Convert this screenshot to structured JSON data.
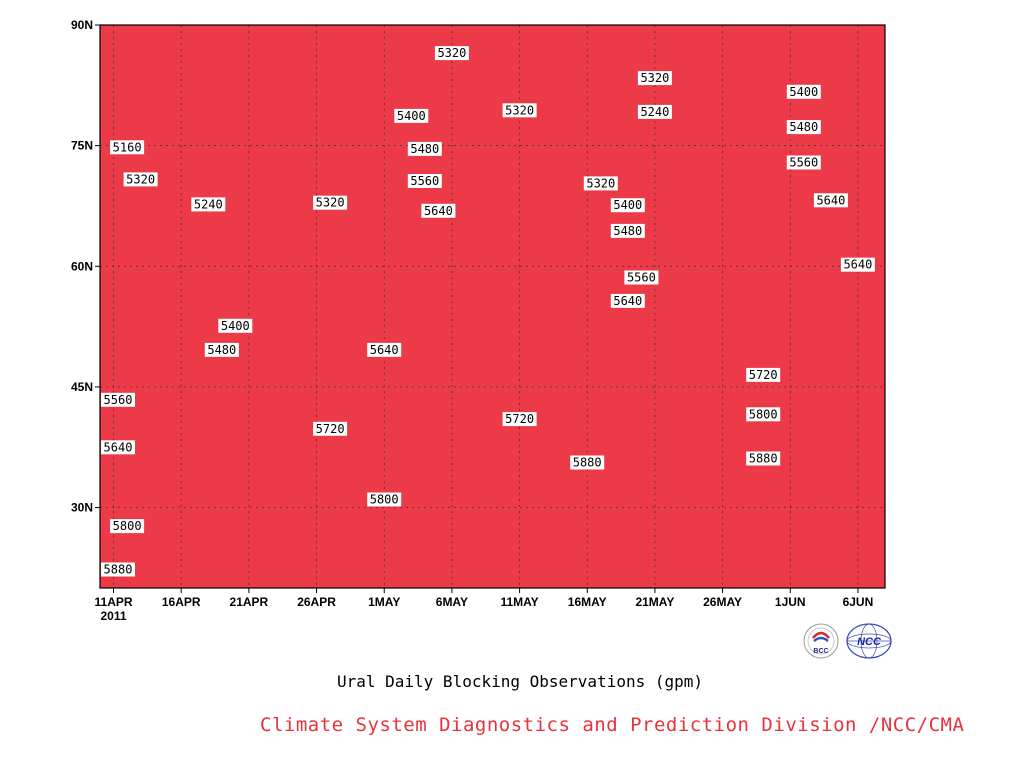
{
  "chart_data": {
    "type": "heatmap",
    "title": "",
    "xlabel": "",
    "ylabel": "",
    "x_ticks": [
      "11APR",
      "16APR",
      "21APR",
      "26APR",
      "1MAY",
      "6MAY",
      "11MAY",
      "16MAY",
      "21MAY",
      "26MAY",
      "1JUN",
      "6JUN"
    ],
    "x_tick_year": "2011",
    "xlim": [
      "2011-04-10",
      "2011-06-07"
    ],
    "y_ticks": [
      "30N",
      "45N",
      "60N",
      "75N",
      "90N"
    ],
    "ylim": [
      20,
      90
    ],
    "contour_levels": [
      5160,
      5240,
      5320,
      5400,
      5480,
      5560,
      5640,
      5720,
      5800,
      5880
    ],
    "level_colors": [
      "#0d1166",
      "#1714e0",
      "#3f4ff2",
      "#5b8fec",
      "#62c6fa",
      "#fffd80",
      "#ffe2a0",
      "#f9a266",
      "#fb7a4c",
      "#f46d78",
      "#ec3a48"
    ],
    "contour_labels": [
      {
        "text": "5320",
        "date": "2011-05-06",
        "lat": 86.5
      },
      {
        "text": "5320",
        "date": "2011-05-21",
        "lat": 83.4
      },
      {
        "text": "5400",
        "date": "2011-06-01",
        "lat": 81.7
      },
      {
        "text": "5320",
        "date": "2011-05-11",
        "lat": 79.4
      },
      {
        "text": "5240",
        "date": "2011-05-21",
        "lat": 79.2
      },
      {
        "text": "5400",
        "date": "2011-05-03",
        "lat": 78.7
      },
      {
        "text": "5480",
        "date": "2011-06-01",
        "lat": 77.3
      },
      {
        "text": "5160",
        "date": "2011-04-12",
        "lat": 74.8
      },
      {
        "text": "5480",
        "date": "2011-05-04",
        "lat": 74.6
      },
      {
        "text": "5560",
        "date": "2011-06-01",
        "lat": 72.9
      },
      {
        "text": "5320",
        "date": "2011-04-13",
        "lat": 70.8
      },
      {
        "text": "5560",
        "date": "2011-05-04",
        "lat": 70.6
      },
      {
        "text": "5320",
        "date": "2011-05-17",
        "lat": 70.3
      },
      {
        "text": "5320",
        "date": "2011-04-27",
        "lat": 67.9
      },
      {
        "text": "5240",
        "date": "2011-04-18",
        "lat": 67.7
      },
      {
        "text": "5400",
        "date": "2011-05-19",
        "lat": 67.6
      },
      {
        "text": "5640",
        "date": "2011-06-03",
        "lat": 68.2
      },
      {
        "text": "5640",
        "date": "2011-05-05",
        "lat": 66.9
      },
      {
        "text": "5480",
        "date": "2011-05-19",
        "lat": 64.4
      },
      {
        "text": "5640",
        "date": "2011-06-05",
        "lat": 60.2
      },
      {
        "text": "5560",
        "date": "2011-05-20",
        "lat": 58.6
      },
      {
        "text": "5640",
        "date": "2011-05-19",
        "lat": 55.7
      },
      {
        "text": "5400",
        "date": "2011-04-20",
        "lat": 52.6
      },
      {
        "text": "5480",
        "date": "2011-04-19",
        "lat": 49.6
      },
      {
        "text": "5640",
        "date": "2011-05-01",
        "lat": 49.6
      },
      {
        "text": "5720",
        "date": "2011-05-29",
        "lat": 46.5
      },
      {
        "text": "5560",
        "date": "2011-04-10",
        "lat": 43.4
      },
      {
        "text": "5800",
        "date": "2011-05-29",
        "lat": 41.6
      },
      {
        "text": "5720",
        "date": "2011-05-11",
        "lat": 41.0
      },
      {
        "text": "5720",
        "date": "2011-04-27",
        "lat": 39.8
      },
      {
        "text": "5640",
        "date": "2011-04-10",
        "lat": 37.5
      },
      {
        "text": "5880",
        "date": "2011-05-29",
        "lat": 36.1
      },
      {
        "text": "5880",
        "date": "2011-05-16",
        "lat": 35.6
      },
      {
        "text": "5800",
        "date": "2011-05-01",
        "lat": 31.0
      },
      {
        "text": "5800",
        "date": "2011-04-12",
        "lat": 27.7
      },
      {
        "text": "5880",
        "date": "2011-04-10",
        "lat": 22.3
      }
    ],
    "grid": true
  },
  "caption": "Ural Daily Blocking Observations (gpm)",
  "credit": {
    "text": "Climate System Diagnostics and Prediction Division /NCC/CMA",
    "color": "#e8323c"
  },
  "logos": [
    {
      "icon": "bcc-logo",
      "text": "BCC"
    },
    {
      "icon": "ncc-logo",
      "text": "NCC"
    }
  ]
}
